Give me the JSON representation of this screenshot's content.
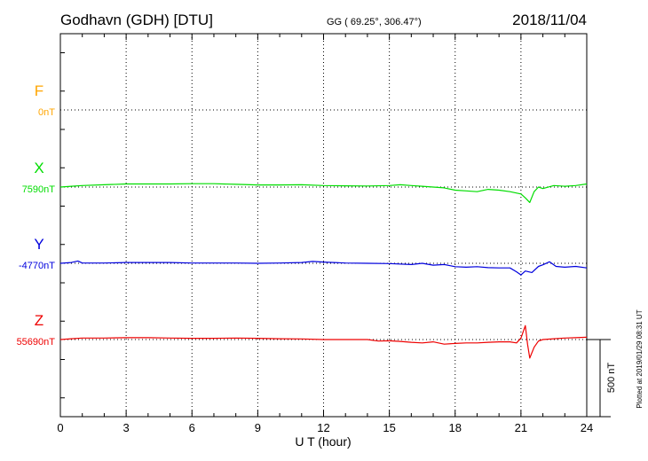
{
  "header": {
    "station": "Godhavn (GDH)  [DTU]",
    "coords": "GG ( 69.25°, 306.47°)",
    "date": "2018/11/04"
  },
  "footer_credit": "Plotted at 2019/01/29 08:31  UT",
  "chart_data": {
    "type": "line",
    "xlabel": "U T (hour)",
    "xlim": [
      0,
      24
    ],
    "xticks": [
      "0",
      "3",
      "6",
      "9",
      "12",
      "15",
      "18",
      "21",
      "24"
    ],
    "scale_bar_label": "500 nT",
    "series": [
      {
        "name": "F",
        "baseline_label": "0nT",
        "color": "#ffa500",
        "x": [],
        "y": []
      },
      {
        "name": "X",
        "baseline_label": "7590nT",
        "color": "#00dd00",
        "x": [
          0,
          0.5,
          1,
          2,
          3,
          4,
          5,
          6,
          7,
          8,
          9,
          10,
          11,
          12,
          13,
          14,
          15,
          15.5,
          16,
          16.5,
          17,
          17.5,
          18,
          18.5,
          19,
          19.5,
          20,
          20.5,
          21,
          21.2,
          21.4,
          21.6,
          21.8,
          22,
          22.5,
          23,
          23.5,
          24
        ],
        "y": [
          7590,
          7595,
          7600,
          7605,
          7610,
          7610,
          7610,
          7612,
          7612,
          7608,
          7604,
          7604,
          7605,
          7600,
          7598,
          7597,
          7600,
          7605,
          7600,
          7595,
          7590,
          7585,
          7570,
          7565,
          7560,
          7575,
          7570,
          7560,
          7545,
          7520,
          7490,
          7560,
          7590,
          7580,
          7600,
          7595,
          7600,
          7610
        ]
      },
      {
        "name": "Y",
        "baseline_label": "-4770nT",
        "color": "#0000dd",
        "x": [
          0,
          0.5,
          0.8,
          1,
          2,
          3,
          4,
          5,
          6,
          7,
          8,
          9,
          10,
          11,
          11.5,
          12,
          13,
          14,
          15,
          16,
          16.5,
          17,
          17.5,
          18,
          18.5,
          19,
          19.5,
          20,
          20.5,
          20.8,
          21,
          21.2,
          21.5,
          21.8,
          22,
          22.3,
          22.6,
          23,
          23.5,
          24
        ],
        "y": [
          -4770,
          -4765,
          -4755,
          -4768,
          -4768,
          -4765,
          -4765,
          -4765,
          -4768,
          -4768,
          -4768,
          -4770,
          -4768,
          -4765,
          -4758,
          -4762,
          -4768,
          -4770,
          -4772,
          -4778,
          -4770,
          -4782,
          -4778,
          -4792,
          -4795,
          -4792,
          -4798,
          -4800,
          -4800,
          -4825,
          -4845,
          -4820,
          -4830,
          -4790,
          -4780,
          -4760,
          -4790,
          -4795,
          -4790,
          -4800
        ]
      },
      {
        "name": "Z",
        "baseline_label": "55690nT",
        "color": "#ee0000",
        "x": [
          0,
          0.5,
          1,
          2,
          3,
          4,
          5,
          6,
          7,
          8,
          9,
          10,
          11,
          12,
          13,
          14,
          14.5,
          15,
          15.5,
          16,
          16.5,
          17,
          17.5,
          18,
          18.5,
          19,
          19.5,
          20,
          20.5,
          20.8,
          21,
          21.2,
          21.3,
          21.4,
          21.6,
          21.8,
          22,
          22.5,
          23,
          23.5,
          24
        ],
        "y": [
          55690,
          55695,
          55700,
          55700,
          55702,
          55702,
          55700,
          55698,
          55698,
          55700,
          55698,
          55695,
          55694,
          55690,
          55690,
          55690,
          55680,
          55682,
          55678,
          55672,
          55668,
          55675,
          55660,
          55665,
          55668,
          55668,
          55672,
          55675,
          55675,
          55668,
          55700,
          55780,
          55660,
          55570,
          55640,
          55680,
          55690,
          55695,
          55700,
          55702,
          55705
        ]
      }
    ]
  }
}
